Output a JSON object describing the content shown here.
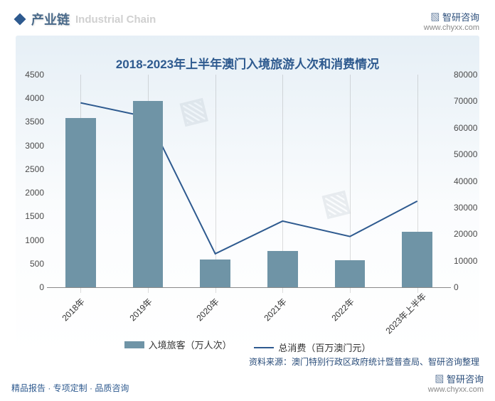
{
  "header": {
    "section_zh": "产业链",
    "section_en": "Industrial Chain",
    "brand": "智研咨询",
    "brand_url": "www.chyxx.com"
  },
  "chart": {
    "title": "2018-2023年上半年澳门入境旅游人次和消费情况",
    "type": "bar_and_line",
    "categories": [
      "2018年",
      "2019年",
      "2020年",
      "2021年",
      "2022年",
      "2023年上半年"
    ],
    "bar_series": {
      "label": "入境旅客（万人次）",
      "values": [
        3580,
        3940,
        590,
        770,
        570,
        1180
      ],
      "color": "#6f94a6",
      "axis": "left"
    },
    "line_series": {
      "label": "总消费（百万澳门元）",
      "values": [
        69400,
        64000,
        12600,
        24900,
        19100,
        32400
      ],
      "color": "#2e5a8f",
      "line_width": 2,
      "axis": "right"
    },
    "y_left": {
      "min": 0,
      "max": 4500,
      "step": 500,
      "label_fontsize": 12
    },
    "y_right": {
      "min": 0,
      "max": 80000,
      "step": 10000,
      "label_fontsize": 12
    },
    "bar_width": 0.45,
    "plot_background_gradient": [
      "#c9dbe9",
      "#ffffff"
    ],
    "grid_color": "rgba(120,120,120,.25)",
    "axis_line_color": "#8a8a8a",
    "x_label_rotation": -45
  },
  "source": "资料来源：澳门特别行政区政府统计暨普查局、智研咨询整理",
  "footer": {
    "tagline": "精品报告 · 专项定制 · 品质咨询",
    "brand": "智研咨询",
    "brand_url": "www.chyxx.com"
  }
}
